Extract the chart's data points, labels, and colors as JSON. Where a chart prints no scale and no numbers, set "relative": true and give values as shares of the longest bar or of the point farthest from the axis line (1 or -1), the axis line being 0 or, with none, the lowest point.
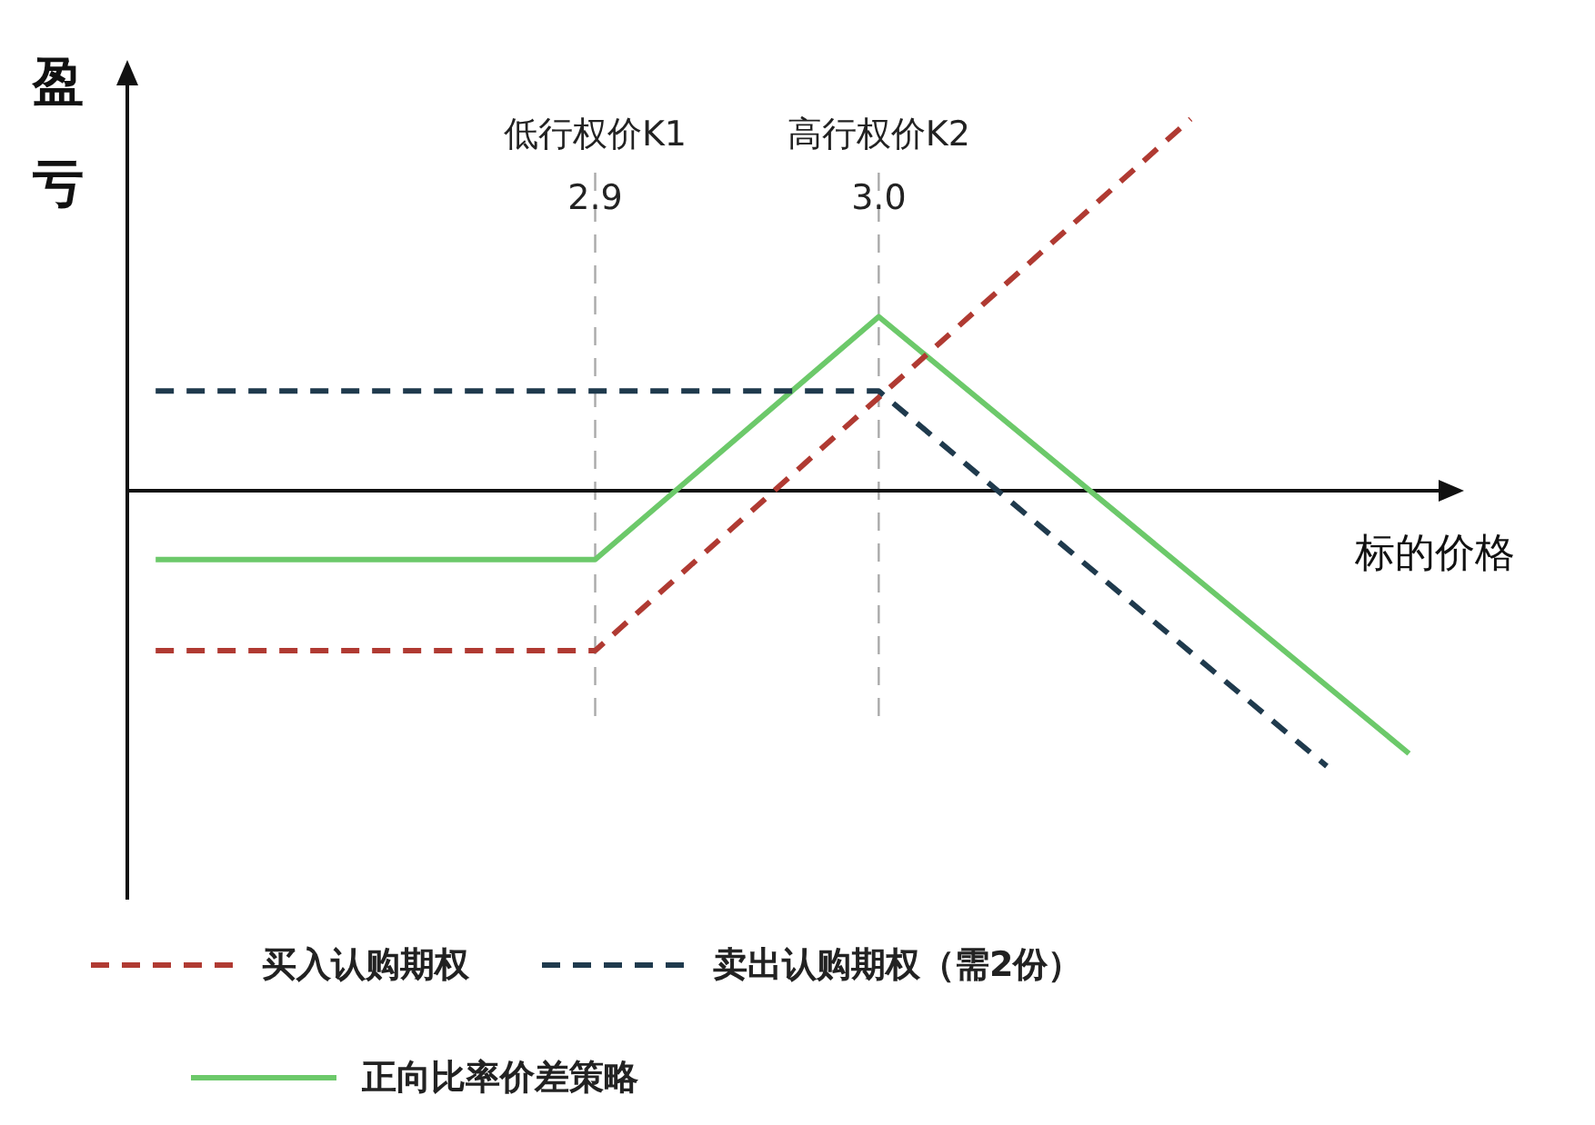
{
  "chart_data": {
    "type": "line",
    "relative": true,
    "ylabel": "盈亏",
    "xlabel": "标的价格",
    "xlim": [
      2.735,
      3.2
    ],
    "xticks": [
      2.9,
      {
        "value": 3.0,
        "label": "3.0"
      }
    ],
    "tick_labels": "x",
    "grid": false,
    "legend": "bottom",
    "marker": "none",
    "ref_lines": [
      {
        "axis": "x",
        "value": 2.9,
        "label": "低行权价K1",
        "color": "#aaaaaa",
        "line_style": "dashed"
      },
      {
        "axis": "x",
        "value": 3.0,
        "label": "高行权价K2",
        "color": "#aaaaaa",
        "line_style": "dashed"
      }
    ],
    "series": [
      {
        "name": "买入认购期权",
        "color": "#b03a32",
        "line_style": "dashed",
        "x": [
          2.745,
          2.9,
          3.11
        ],
        "values": [
          -0.43,
          -0.43,
          1
        ]
      },
      {
        "name": "卖出认购期权（需2份）",
        "color": "#1f3a4d",
        "line_style": "dashed",
        "x": [
          2.745,
          3.0,
          3.158
        ],
        "values": [
          0.268,
          0.268,
          -0.741
        ]
      },
      {
        "name": "正向比率价差策略",
        "color": "#6cc96a",
        "line_style": "solid",
        "x": [
          2.745,
          2.9,
          3.0,
          3.187
        ],
        "values": [
          -0.185,
          -0.185,
          0.468,
          -0.707
        ]
      }
    ]
  }
}
